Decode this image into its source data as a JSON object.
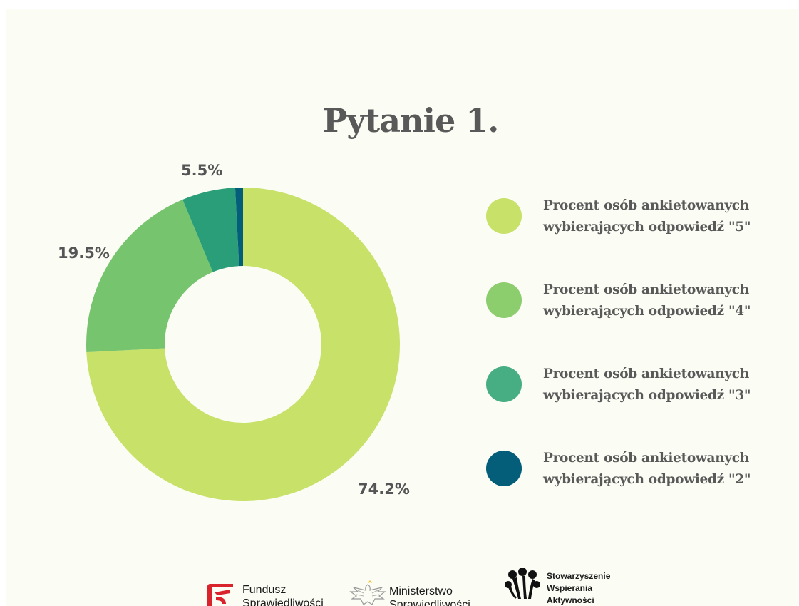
{
  "title": "Pytanie 1.",
  "chart_data": {
    "type": "donut",
    "series": [
      {
        "value": 74.2,
        "label": "74.2%",
        "legend": [
          "Procent osób ankietowanych",
          "wybierających odpowiedź  \"5\""
        ],
        "color": "#c8e169"
      },
      {
        "value": 19.5,
        "label": "19.5%",
        "legend": [
          "Procent osób ankietowanych",
          "wybierających odpowiedź  \"4\""
        ],
        "color": "#77c46e"
      },
      {
        "value": 5.5,
        "label": "5.5%",
        "legend": [
          "Procent osób ankietowanych",
          "wybierających odpowiedź  \"3\""
        ],
        "color": "#2a9e78"
      },
      {
        "value": 0.8,
        "label": "",
        "legend": [
          "Procent osób ankietowanych",
          "wybierających odpowiedź  \"2\""
        ],
        "color": "#045e7a"
      }
    ]
  },
  "legend_colors": [
    "#c8e169",
    "#8ccd6e",
    "#46ae82",
    "#045e7a"
  ],
  "footer": {
    "logo1": [
      "Fundusz",
      "Sprawiedliwości"
    ],
    "logo2": [
      "Ministerstwo",
      "Sprawiedliwości"
    ],
    "logo3": [
      "Stowarzyszenie",
      "Wspierania",
      "Aktywności"
    ]
  }
}
